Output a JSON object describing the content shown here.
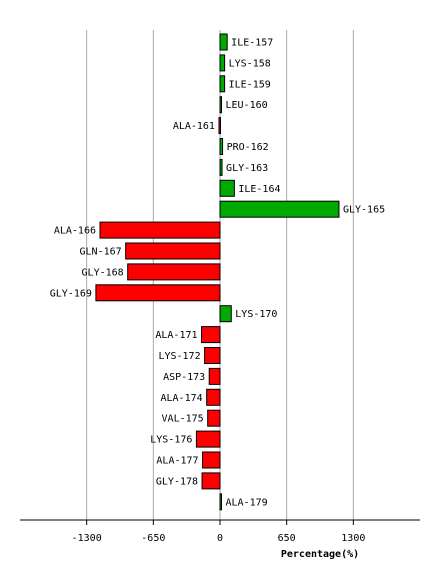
{
  "chart_data": {
    "type": "bar",
    "orientation": "horizontal",
    "xlabel": "Percentage(%)",
    "xlim": [
      -1950,
      1950
    ],
    "xticks": [
      -1300,
      -650,
      0,
      650,
      1300
    ],
    "grid": true,
    "colors": {
      "positive": "#00aa00",
      "negative": "#ff0000"
    },
    "categories": [
      "ILE-157",
      "LYS-158",
      "ILE-159",
      "LEU-160",
      "ALA-161",
      "PRO-162",
      "GLY-163",
      "ILE-164",
      "GLY-165",
      "ALA-166",
      "GLN-167",
      "GLY-168",
      "GLY-169",
      "LYS-170",
      "ALA-171",
      "LYS-172",
      "ASP-173",
      "ALA-174",
      "VAL-175",
      "LYS-176",
      "ALA-177",
      "GLY-178",
      "ALA-179"
    ],
    "values": [
      70,
      45,
      45,
      5,
      -10,
      25,
      20,
      140,
      1160,
      -1170,
      -920,
      -900,
      -1210,
      110,
      -180,
      -150,
      -105,
      -130,
      -120,
      -230,
      -170,
      -175,
      0
    ]
  }
}
